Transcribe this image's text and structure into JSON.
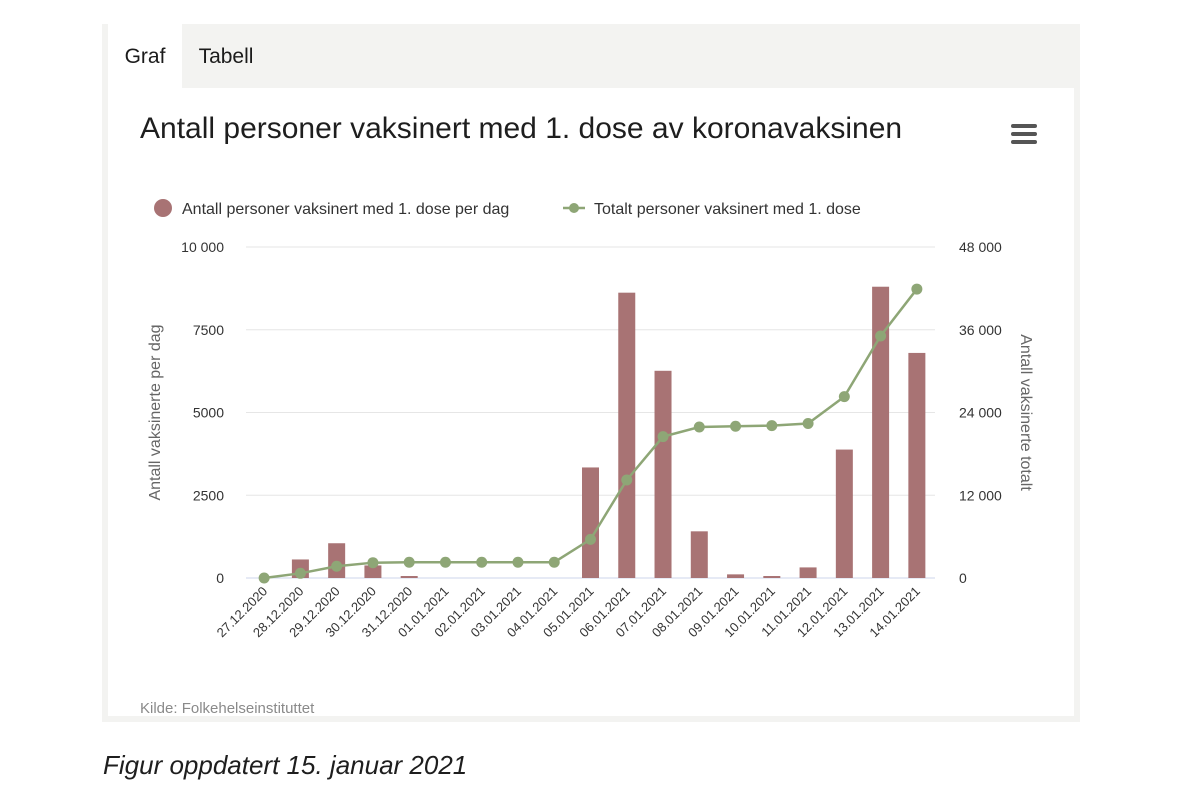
{
  "tabs": [
    {
      "label": "Graf",
      "active": true
    },
    {
      "label": "Tabell",
      "active": false
    }
  ],
  "chart_data": {
    "type": "bar",
    "title": "Antall personer vaksinert med 1. dose av koronavaksinen",
    "categories": [
      "27.12.2020",
      "28.12.2020",
      "29.12.2020",
      "30.12.2020",
      "31.12.2020",
      "01.01.2021",
      "02.01.2021",
      "03.01.2021",
      "04.01.2021",
      "05.01.2021",
      "06.01.2021",
      "07.01.2021",
      "08.01.2021",
      "09.01.2021",
      "10.01.2021",
      "11.01.2021",
      "12.01.2021",
      "13.01.2021",
      "14.01.2021"
    ],
    "series": [
      {
        "name": "Antall personer vaksinert med 1. dose per dag",
        "type": "bar",
        "axis": "left",
        "color": "#a87374",
        "values": [
          0,
          560,
          1050,
          380,
          60,
          0,
          0,
          0,
          0,
          3340,
          8620,
          6260,
          1410,
          110,
          60,
          320,
          3880,
          8800,
          6800
        ]
      },
      {
        "name": "Totalt personer vaksinert med 1. dose",
        "type": "line",
        "axis": "right",
        "color": "#8ea676",
        "values": [
          0,
          680,
          1700,
          2220,
          2290,
          2290,
          2290,
          2290,
          2290,
          5600,
          14220,
          20500,
          21900,
          22000,
          22100,
          22400,
          26300,
          35100,
          41900
        ]
      }
    ],
    "ylabel_left": "Antall vaksinerte per dag",
    "ylabel_right": "Antall vaksinerte totalt",
    "ylim_left": [
      0,
      10000
    ],
    "ylim_right": [
      0,
      48000
    ],
    "yticks_left": [
      "0",
      "2500",
      "5000",
      "7500",
      "10 000"
    ],
    "yticks_right": [
      "0",
      "12 000",
      "24 000",
      "36 000",
      "48 000"
    ],
    "legend_position": "top-left",
    "grid": true
  },
  "source": "Kilde: Folkehelseinstituttet",
  "caption": "Figur oppdatert 15. januar 2021",
  "icons": {
    "menu": "hamburger-menu-icon"
  }
}
